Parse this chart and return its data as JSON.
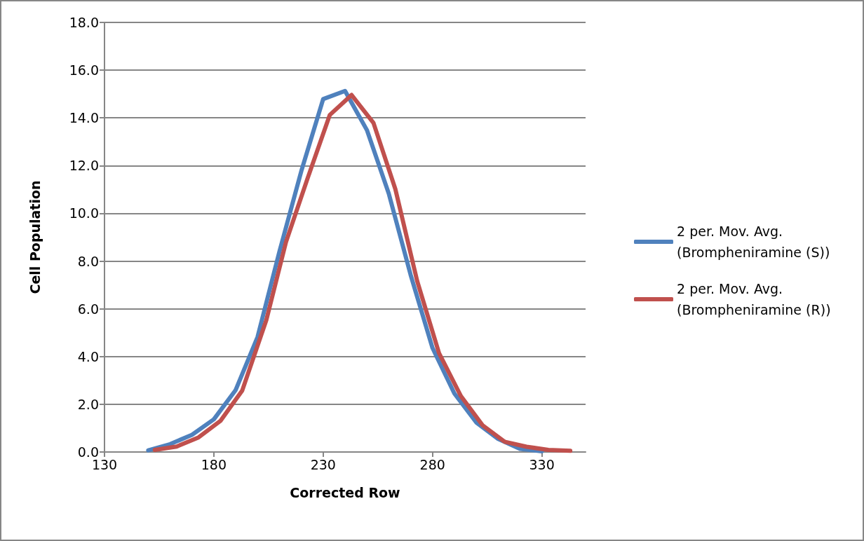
{
  "chart_data": {
    "type": "line",
    "xlabel": "Corrected Row",
    "ylabel": "Cell Population",
    "series": [
      {
        "name": "2 per. Mov. Avg. (Brompheniramine (S))",
        "color": "#4f81bd",
        "x": [
          150,
          160,
          170,
          180,
          190,
          200,
          210,
          220,
          230,
          240,
          250,
          260,
          270,
          280,
          290,
          300,
          310,
          320,
          330
        ],
        "values": [
          0.07,
          0.33,
          0.72,
          1.37,
          2.6,
          4.82,
          8.4,
          11.77,
          14.79,
          15.13,
          13.49,
          10.83,
          7.42,
          4.36,
          2.45,
          1.24,
          0.55,
          0.13,
          0.03
        ]
      },
      {
        "name": "2 per. Mov. Avg. (Brompheniramine (R))",
        "color": "#c0504d",
        "x": [
          153,
          163,
          173,
          183,
          193,
          204,
          213,
          223,
          233,
          243,
          253,
          263,
          273,
          283,
          293,
          303,
          313,
          323,
          333,
          343
        ],
        "values": [
          0.09,
          0.23,
          0.61,
          1.3,
          2.58,
          5.53,
          8.8,
          11.5,
          14.12,
          14.96,
          13.79,
          11.02,
          7.16,
          4.14,
          2.34,
          1.11,
          0.43,
          0.22,
          0.09,
          0.05
        ]
      }
    ],
    "xlim": [
      130,
      350
    ],
    "xticks": [
      130,
      180,
      230,
      280,
      330
    ],
    "ylim": [
      0,
      18
    ],
    "yticks": [
      {
        "value": 0,
        "label": "0.0"
      },
      {
        "value": 2,
        "label": "2.0"
      },
      {
        "value": 4,
        "label": "4.0"
      },
      {
        "value": 6,
        "label": "6.0"
      },
      {
        "value": 8,
        "label": "8.0"
      },
      {
        "value": 10,
        "label": "10.0"
      },
      {
        "value": 12,
        "label": "12.0"
      },
      {
        "value": 14,
        "label": "14.0"
      },
      {
        "value": 16,
        "label": "16.0"
      },
      {
        "value": 18,
        "label": "18.0"
      }
    ],
    "grid": "y",
    "legend": "right",
    "marker": "none",
    "line_style": "solid"
  }
}
